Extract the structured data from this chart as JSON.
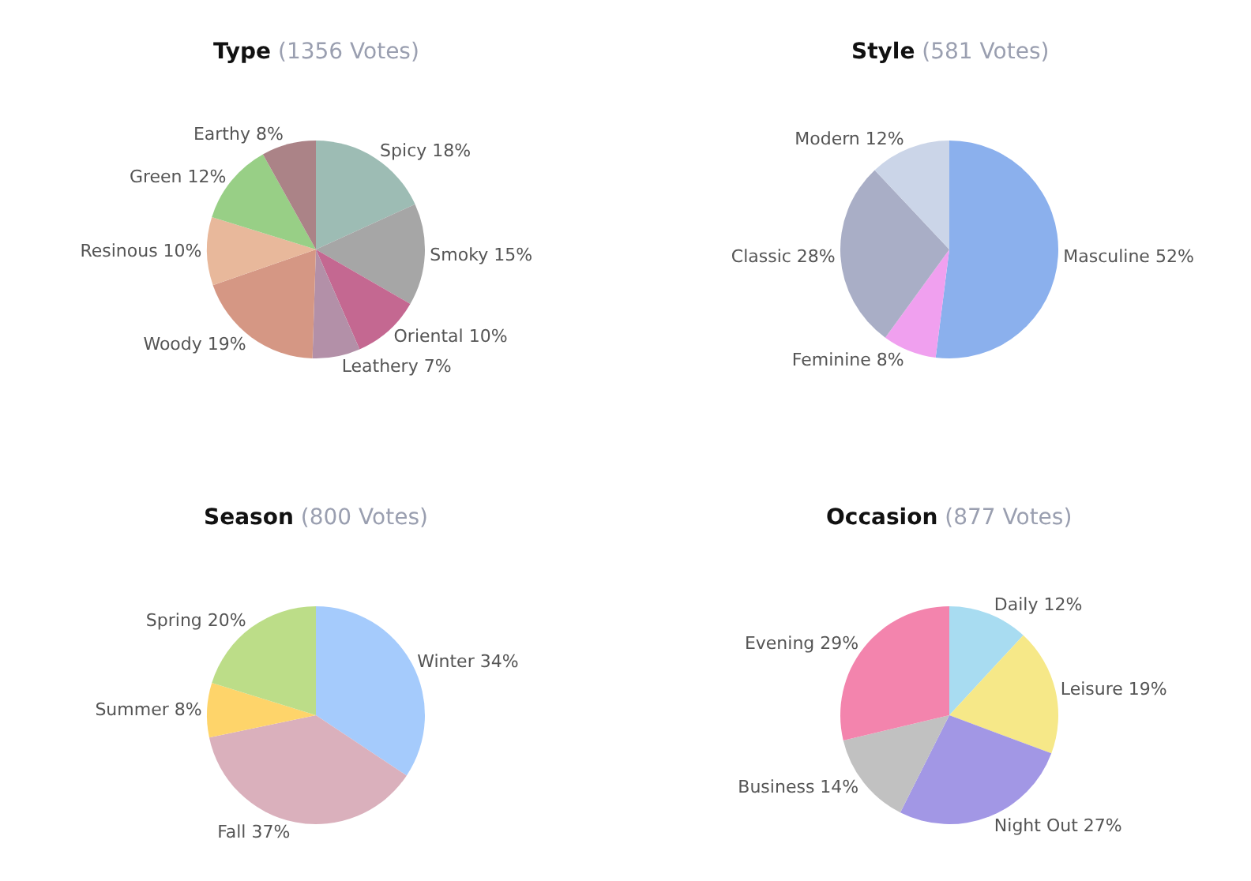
{
  "chart_data": [
    {
      "type": "pie",
      "title": "Type",
      "subtitle": "(1356 Votes)",
      "categories": [
        "Spicy",
        "Smoky",
        "Oriental",
        "Leathery",
        "Woody",
        "Resinous",
        "Green",
        "Earthy"
      ],
      "values": [
        18,
        15,
        10,
        7,
        19,
        10,
        12,
        8
      ],
      "value_labels": [
        "18%",
        "15%",
        "10%",
        "7%",
        "19%",
        "10%",
        "12%",
        "8%"
      ],
      "colors": [
        "#9dbcb4",
        "#a6a6a6",
        "#c46891",
        "#b390a8",
        "#d59784",
        "#e8b89b",
        "#98cf86",
        "#ab8387"
      ]
    },
    {
      "type": "pie",
      "title": "Style",
      "subtitle": "(581 Votes)",
      "categories": [
        "Masculine",
        "Feminine",
        "Classic",
        "Modern"
      ],
      "values": [
        52,
        8,
        28,
        12
      ],
      "value_labels": [
        "52%",
        "8%",
        "28%",
        "12%"
      ],
      "colors": [
        "#8bb0ed",
        "#f0a0ef",
        "#a9aec6",
        "#cbd5e8"
      ]
    },
    {
      "type": "pie",
      "title": "Season",
      "subtitle": "(800 Votes)",
      "categories": [
        "Winter",
        "Fall",
        "Summer",
        "Spring"
      ],
      "values": [
        34,
        37,
        8,
        20
      ],
      "value_labels": [
        "34%",
        "37%",
        "8%",
        "20%"
      ],
      "colors": [
        "#a5cbfc",
        "#dab0bc",
        "#fed46a",
        "#bcdd88"
      ]
    },
    {
      "type": "pie",
      "title": "Occasion",
      "subtitle": "(877 Votes)",
      "categories": [
        "Daily",
        "Leisure",
        "Night Out",
        "Business",
        "Evening"
      ],
      "values": [
        12,
        19,
        27,
        14,
        29
      ],
      "value_labels": [
        "12%",
        "19%",
        "27%",
        "14%",
        "29%"
      ],
      "colors": [
        "#a8dcf1",
        "#f6e888",
        "#a297e5",
        "#c1c1c1",
        "#f384ad"
      ]
    }
  ]
}
